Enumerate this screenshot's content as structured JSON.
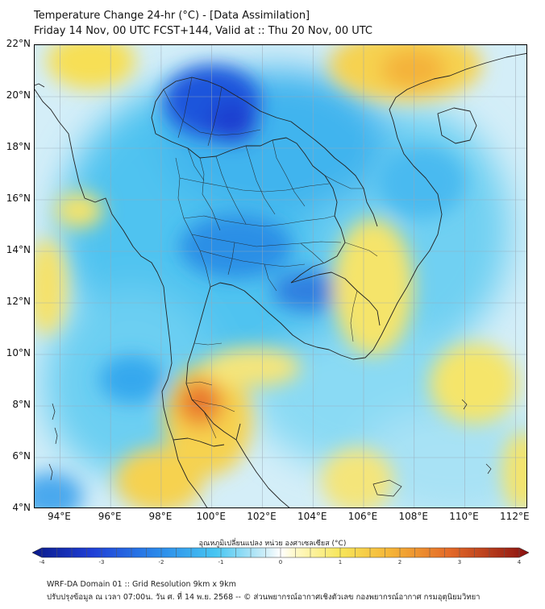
{
  "title": {
    "line1": "Temperature Change 24-hr (°C) - [Data Assimilation]",
    "line2": "Friday 14 Nov, 00 UTC FCST+144, Valid at :: Thu 20 Nov, 00 UTC"
  },
  "map": {
    "lat_labels": [
      "22°N",
      "20°N",
      "18°N",
      "16°N",
      "14°N",
      "12°N",
      "10°N",
      "8°N",
      "6°N",
      "4°N"
    ],
    "lon_labels": [
      "94°E",
      "96°E",
      "98°E",
      "100°E",
      "102°E",
      "104°E",
      "106°E",
      "108°E",
      "110°E",
      "112°E"
    ],
    "lat_range": [
      4,
      22
    ],
    "lon_range": [
      93,
      112.5
    ],
    "grid": true,
    "colors": {
      "cold_strong": "#1a3fd0",
      "cold": "#2aa0ec",
      "cool": "#5cc8f2",
      "neutral": "#d8eff8",
      "warm": "#f7e96a",
      "warmer": "#f5b93a",
      "hot": "#e8702a",
      "boundary": "#222222",
      "gridline": "#9aa8b5"
    }
  },
  "colorbar": {
    "title": "อุณหภูมิเปลี่ยนแปลง หน่วย องศาเซลเซียส (°C)",
    "ticks": [
      "-4",
      "-3",
      "-2",
      "-1",
      "0",
      "1",
      "2",
      "3",
      "4"
    ],
    "range": [
      -4,
      4
    ]
  },
  "footer": {
    "line1": "WRF-DA Domain 01 :: Grid Resolution 9km x 9km",
    "line2": "ปรับปรุงข้อมูล ณ เวลา 07:00น. วัน ศ. ที่ 14 พ.ย. 2568 -- © ส่วนพยากรณ์อากาศเชิงตัวเลข กองพยากรณ์อากาศ กรมอุตุนิยมวิทยา"
  }
}
